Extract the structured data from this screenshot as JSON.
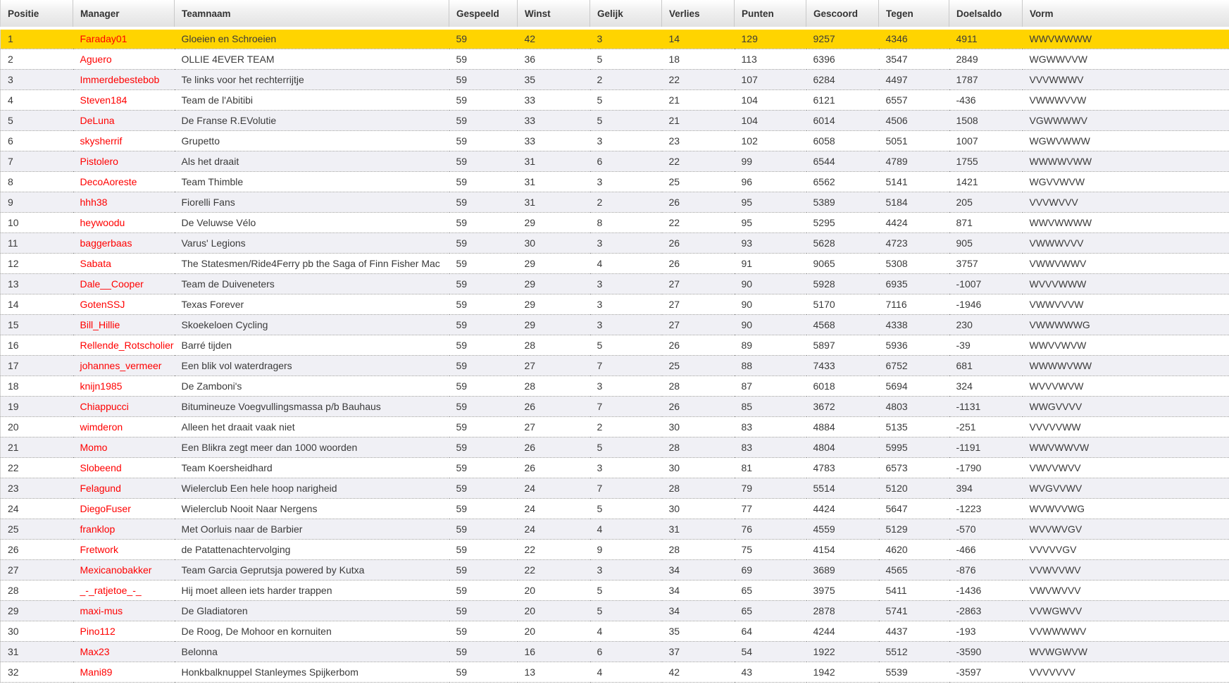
{
  "table": {
    "columns": [
      "Positie",
      "Manager",
      "Teamnaam",
      "Gespeeld",
      "Winst",
      "Gelijk",
      "Verlies",
      "Punten",
      "Gescoord",
      "Tegen",
      "Doelsaldo",
      "Vorm"
    ],
    "rows": [
      {
        "positie": "1",
        "manager": "Faraday01",
        "teamnaam": "Gloeien en Schroeien",
        "gespeeld": "59",
        "winst": "42",
        "gelijk": "3",
        "verlies": "14",
        "punten": "129",
        "gescoord": "9257",
        "tegen": "4346",
        "doelsaldo": "4911",
        "vorm": "WWVWWWW",
        "highlighted": true
      },
      {
        "positie": "2",
        "manager": "Aguero",
        "teamnaam": "OLLIE 4EVER TEAM",
        "gespeeld": "59",
        "winst": "36",
        "gelijk": "5",
        "verlies": "18",
        "punten": "113",
        "gescoord": "6396",
        "tegen": "3547",
        "doelsaldo": "2849",
        "vorm": "WGWWVVW",
        "highlighted": false
      },
      {
        "positie": "3",
        "manager": "Immerdebestebob",
        "teamnaam": "Te links voor het rechterrijtje",
        "gespeeld": "59",
        "winst": "35",
        "gelijk": "2",
        "verlies": "22",
        "punten": "107",
        "gescoord": "6284",
        "tegen": "4497",
        "doelsaldo": "1787",
        "vorm": "VVVWWWV",
        "highlighted": false
      },
      {
        "positie": "4",
        "manager": "Steven184",
        "teamnaam": "Team de l'Abitibi",
        "gespeeld": "59",
        "winst": "33",
        "gelijk": "5",
        "verlies": "21",
        "punten": "104",
        "gescoord": "6121",
        "tegen": "6557",
        "doelsaldo": "-436",
        "vorm": "VWWWVVW",
        "highlighted": false
      },
      {
        "positie": "5",
        "manager": "DeLuna",
        "teamnaam": "De Franse R.EVolutie",
        "gespeeld": "59",
        "winst": "33",
        "gelijk": "5",
        "verlies": "21",
        "punten": "104",
        "gescoord": "6014",
        "tegen": "4506",
        "doelsaldo": "1508",
        "vorm": "VGWWWWV",
        "highlighted": false
      },
      {
        "positie": "6",
        "manager": "skysherrif",
        "teamnaam": "Grupetto",
        "gespeeld": "59",
        "winst": "33",
        "gelijk": "3",
        "verlies": "23",
        "punten": "102",
        "gescoord": "6058",
        "tegen": "5051",
        "doelsaldo": "1007",
        "vorm": "WGWVWWW",
        "highlighted": false
      },
      {
        "positie": "7",
        "manager": "Pistolero",
        "teamnaam": "Als het draait",
        "gespeeld": "59",
        "winst": "31",
        "gelijk": "6",
        "verlies": "22",
        "punten": "99",
        "gescoord": "6544",
        "tegen": "4789",
        "doelsaldo": "1755",
        "vorm": "WWWWVWW",
        "highlighted": false
      },
      {
        "positie": "8",
        "manager": "DecoAoreste",
        "teamnaam": "Team Thimble",
        "gespeeld": "59",
        "winst": "31",
        "gelijk": "3",
        "verlies": "25",
        "punten": "96",
        "gescoord": "6562",
        "tegen": "5141",
        "doelsaldo": "1421",
        "vorm": "WGVVWVW",
        "highlighted": false
      },
      {
        "positie": "9",
        "manager": "hhh38",
        "teamnaam": "Fiorelli Fans",
        "gespeeld": "59",
        "winst": "31",
        "gelijk": "2",
        "verlies": "26",
        "punten": "95",
        "gescoord": "5389",
        "tegen": "5184",
        "doelsaldo": "205",
        "vorm": "VVVWVVV",
        "highlighted": false
      },
      {
        "positie": "10",
        "manager": "heywoodu",
        "teamnaam": "De Veluwse Vélo",
        "gespeeld": "59",
        "winst": "29",
        "gelijk": "8",
        "verlies": "22",
        "punten": "95",
        "gescoord": "5295",
        "tegen": "4424",
        "doelsaldo": "871",
        "vorm": "WWVWWWW",
        "highlighted": false
      },
      {
        "positie": "11",
        "manager": "baggerbaas",
        "teamnaam": "Varus' Legions",
        "gespeeld": "59",
        "winst": "30",
        "gelijk": "3",
        "verlies": "26",
        "punten": "93",
        "gescoord": "5628",
        "tegen": "4723",
        "doelsaldo": "905",
        "vorm": "VWWWVVV",
        "highlighted": false
      },
      {
        "positie": "12",
        "manager": "Sabata",
        "teamnaam": "The Statesmen/Ride4Ferry pb the Saga of Finn Fisher Mac",
        "gespeeld": "59",
        "winst": "29",
        "gelijk": "4",
        "verlies": "26",
        "punten": "91",
        "gescoord": "9065",
        "tegen": "5308",
        "doelsaldo": "3757",
        "vorm": "VWWVWWV",
        "highlighted": false
      },
      {
        "positie": "13",
        "manager": "Dale__Cooper",
        "teamnaam": "Team de Duiveneters",
        "gespeeld": "59",
        "winst": "29",
        "gelijk": "3",
        "verlies": "27",
        "punten": "90",
        "gescoord": "5928",
        "tegen": "6935",
        "doelsaldo": "-1007",
        "vorm": "WVVVWWW",
        "highlighted": false
      },
      {
        "positie": "14",
        "manager": "GotenSSJ",
        "teamnaam": "Texas Forever",
        "gespeeld": "59",
        "winst": "29",
        "gelijk": "3",
        "verlies": "27",
        "punten": "90",
        "gescoord": "5170",
        "tegen": "7116",
        "doelsaldo": "-1946",
        "vorm": "VWWVVVW",
        "highlighted": false
      },
      {
        "positie": "15",
        "manager": "Bill_Hillie",
        "teamnaam": "Skoekeloen Cycling",
        "gespeeld": "59",
        "winst": "29",
        "gelijk": "3",
        "verlies": "27",
        "punten": "90",
        "gescoord": "4568",
        "tegen": "4338",
        "doelsaldo": "230",
        "vorm": "VWWWWWG",
        "highlighted": false
      },
      {
        "positie": "16",
        "manager": "Rellende_Rotscholier",
        "teamnaam": "Barré tijden",
        "gespeeld": "59",
        "winst": "28",
        "gelijk": "5",
        "verlies": "26",
        "punten": "89",
        "gescoord": "5897",
        "tegen": "5936",
        "doelsaldo": "-39",
        "vorm": "WWVVWVW",
        "highlighted": false
      },
      {
        "positie": "17",
        "manager": "johannes_vermeer",
        "teamnaam": "Een blik vol waterdragers",
        "gespeeld": "59",
        "winst": "27",
        "gelijk": "7",
        "verlies": "25",
        "punten": "88",
        "gescoord": "7433",
        "tegen": "6752",
        "doelsaldo": "681",
        "vorm": "WWWWVWW",
        "highlighted": false
      },
      {
        "positie": "18",
        "manager": "knijn1985",
        "teamnaam": "De Zamboni's",
        "gespeeld": "59",
        "winst": "28",
        "gelijk": "3",
        "verlies": "28",
        "punten": "87",
        "gescoord": "6018",
        "tegen": "5694",
        "doelsaldo": "324",
        "vorm": "WVVVWVW",
        "highlighted": false
      },
      {
        "positie": "19",
        "manager": "Chiappucci",
        "teamnaam": "Bitumineuze Voegvullingsmassa p/b Bauhaus",
        "gespeeld": "59",
        "winst": "26",
        "gelijk": "7",
        "verlies": "26",
        "punten": "85",
        "gescoord": "3672",
        "tegen": "4803",
        "doelsaldo": "-1131",
        "vorm": "WWGVVVV",
        "highlighted": false
      },
      {
        "positie": "20",
        "manager": "wimderon",
        "teamnaam": "Alleen het draait vaak niet",
        "gespeeld": "59",
        "winst": "27",
        "gelijk": "2",
        "verlies": "30",
        "punten": "83",
        "gescoord": "4884",
        "tegen": "5135",
        "doelsaldo": "-251",
        "vorm": "VVVVVWW",
        "highlighted": false
      },
      {
        "positie": "21",
        "manager": "Momo",
        "teamnaam": "Een Blikra zegt meer dan 1000 woorden",
        "gespeeld": "59",
        "winst": "26",
        "gelijk": "5",
        "verlies": "28",
        "punten": "83",
        "gescoord": "4804",
        "tegen": "5995",
        "doelsaldo": "-1191",
        "vorm": "WWVWWVW",
        "highlighted": false
      },
      {
        "positie": "22",
        "manager": "Slobeend",
        "teamnaam": "Team Koersheidhard",
        "gespeeld": "59",
        "winst": "26",
        "gelijk": "3",
        "verlies": "30",
        "punten": "81",
        "gescoord": "4783",
        "tegen": "6573",
        "doelsaldo": "-1790",
        "vorm": "VWVVWVV",
        "highlighted": false
      },
      {
        "positie": "23",
        "manager": "Felagund",
        "teamnaam": "Wielerclub Een hele hoop narigheid",
        "gespeeld": "59",
        "winst": "24",
        "gelijk": "7",
        "verlies": "28",
        "punten": "79",
        "gescoord": "5514",
        "tegen": "5120",
        "doelsaldo": "394",
        "vorm": "WVGVVWV",
        "highlighted": false
      },
      {
        "positie": "24",
        "manager": "DiegoFuser",
        "teamnaam": "Wielerclub Nooit Naar Nergens",
        "gespeeld": "59",
        "winst": "24",
        "gelijk": "5",
        "verlies": "30",
        "punten": "77",
        "gescoord": "4424",
        "tegen": "5647",
        "doelsaldo": "-1223",
        "vorm": "WVWVVWG",
        "highlighted": false
      },
      {
        "positie": "25",
        "manager": "franklop",
        "teamnaam": "Met Oorluis naar de Barbier",
        "gespeeld": "59",
        "winst": "24",
        "gelijk": "4",
        "verlies": "31",
        "punten": "76",
        "gescoord": "4559",
        "tegen": "5129",
        "doelsaldo": "-570",
        "vorm": "WVVWVGV",
        "highlighted": false
      },
      {
        "positie": "26",
        "manager": "Fretwork",
        "teamnaam": "de Patattenachtervolging",
        "gespeeld": "59",
        "winst": "22",
        "gelijk": "9",
        "verlies": "28",
        "punten": "75",
        "gescoord": "4154",
        "tegen": "4620",
        "doelsaldo": "-466",
        "vorm": "VVVVVGV",
        "highlighted": false
      },
      {
        "positie": "27",
        "manager": "Mexicanobakker",
        "teamnaam": "Team Garcia Geprutsja powered by Kutxa",
        "gespeeld": "59",
        "winst": "22",
        "gelijk": "3",
        "verlies": "34",
        "punten": "69",
        "gescoord": "3689",
        "tegen": "4565",
        "doelsaldo": "-876",
        "vorm": "VVWVVWV",
        "highlighted": false
      },
      {
        "positie": "28",
        "manager": "_-_ratjetoe_-_",
        "teamnaam": "Hij moet alleen iets harder trappen",
        "gespeeld": "59",
        "winst": "20",
        "gelijk": "5",
        "verlies": "34",
        "punten": "65",
        "gescoord": "3975",
        "tegen": "5411",
        "doelsaldo": "-1436",
        "vorm": "VWVWVVV",
        "highlighted": false
      },
      {
        "positie": "29",
        "manager": "maxi-mus",
        "teamnaam": "De Gladiatoren",
        "gespeeld": "59",
        "winst": "20",
        "gelijk": "5",
        "verlies": "34",
        "punten": "65",
        "gescoord": "2878",
        "tegen": "5741",
        "doelsaldo": "-2863",
        "vorm": "VVWGWVV",
        "highlighted": false
      },
      {
        "positie": "30",
        "manager": "Pino112",
        "teamnaam": "De Roog, De Mohoor en kornuiten",
        "gespeeld": "59",
        "winst": "20",
        "gelijk": "4",
        "verlies": "35",
        "punten": "64",
        "gescoord": "4244",
        "tegen": "4437",
        "doelsaldo": "-193",
        "vorm": "VVWWWWV",
        "highlighted": false
      },
      {
        "positie": "31",
        "manager": "Max23",
        "teamnaam": "Belonna",
        "gespeeld": "59",
        "winst": "16",
        "gelijk": "6",
        "verlies": "37",
        "punten": "54",
        "gescoord": "1922",
        "tegen": "5512",
        "doelsaldo": "-3590",
        "vorm": "WVWGWVW",
        "highlighted": false
      },
      {
        "positie": "32",
        "manager": "Mani89",
        "teamnaam": "Honkbalknuppel Stanleymes Spijkerbom",
        "gespeeld": "59",
        "winst": "13",
        "gelijk": "4",
        "verlies": "42",
        "punten": "43",
        "gescoord": "1942",
        "tegen": "5539",
        "doelsaldo": "-3597",
        "vorm": "VVVVVVV",
        "highlighted": false
      }
    ]
  },
  "colors": {
    "highlight_row": "#ffd400",
    "manager_link": "#ff0000",
    "alt_row": "#f0f0f5",
    "row_border": "#999999",
    "text": "#333333"
  }
}
